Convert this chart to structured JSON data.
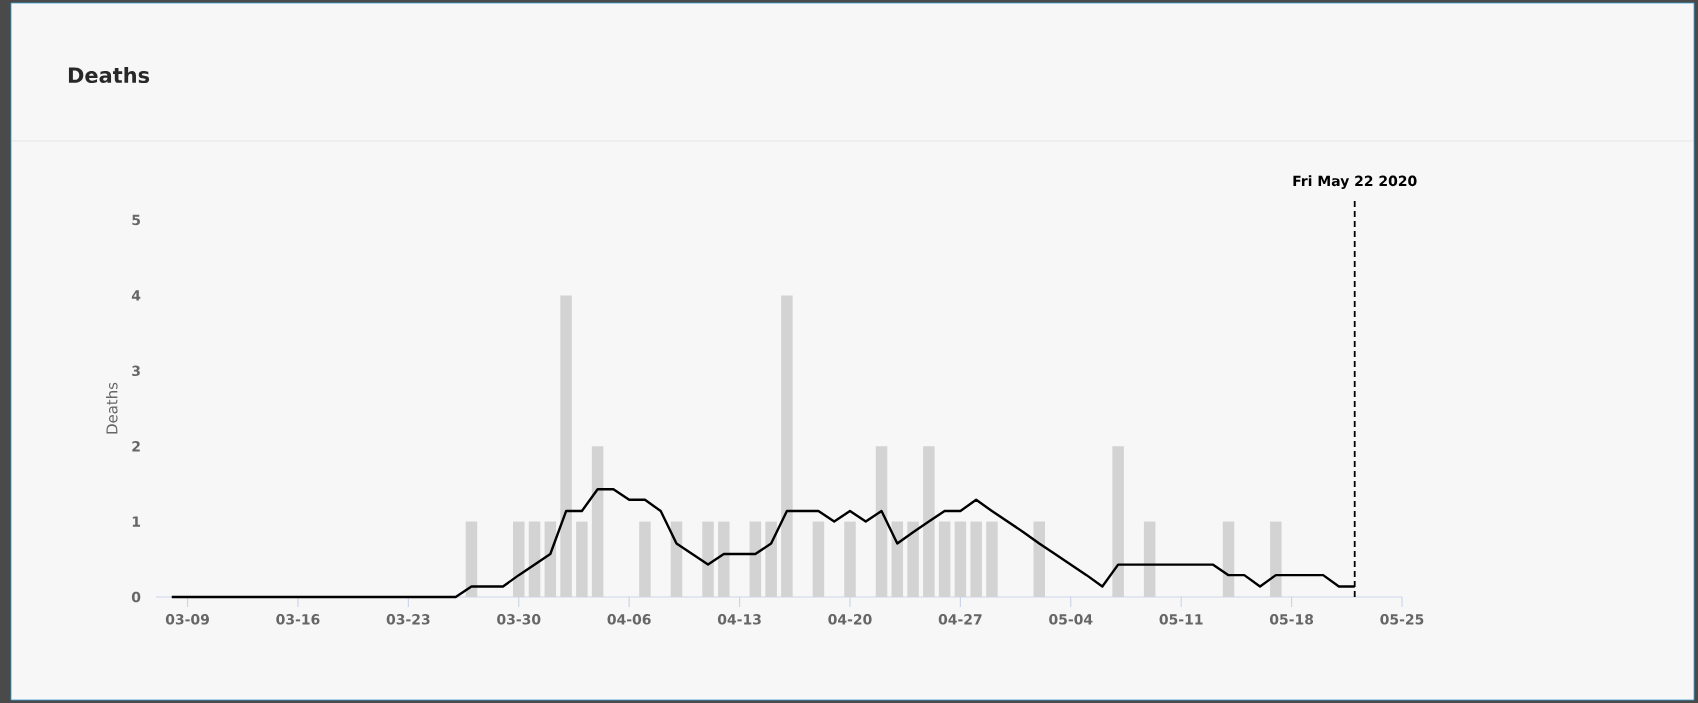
{
  "chart_data": {
    "type": "bar",
    "title": "Deaths",
    "ylabel": "Deaths",
    "x": [
      "2020-03-08",
      "2020-03-09",
      "2020-03-10",
      "2020-03-11",
      "2020-03-12",
      "2020-03-13",
      "2020-03-14",
      "2020-03-15",
      "2020-03-16",
      "2020-03-17",
      "2020-03-18",
      "2020-03-19",
      "2020-03-20",
      "2020-03-21",
      "2020-03-22",
      "2020-03-23",
      "2020-03-24",
      "2020-03-25",
      "2020-03-26",
      "2020-03-27",
      "2020-03-28",
      "2020-03-29",
      "2020-03-30",
      "2020-03-31",
      "2020-04-01",
      "2020-04-02",
      "2020-04-03",
      "2020-04-04",
      "2020-04-05",
      "2020-04-06",
      "2020-04-07",
      "2020-04-08",
      "2020-04-09",
      "2020-04-10",
      "2020-04-11",
      "2020-04-12",
      "2020-04-13",
      "2020-04-14",
      "2020-04-15",
      "2020-04-16",
      "2020-04-17",
      "2020-04-18",
      "2020-04-19",
      "2020-04-20",
      "2020-04-21",
      "2020-04-22",
      "2020-04-23",
      "2020-04-24",
      "2020-04-25",
      "2020-04-26",
      "2020-04-27",
      "2020-04-28",
      "2020-04-29",
      "2020-04-30",
      "2020-05-01",
      "2020-05-02",
      "2020-05-03",
      "2020-05-04",
      "2020-05-05",
      "2020-05-06",
      "2020-05-07",
      "2020-05-08",
      "2020-05-09",
      "2020-05-10",
      "2020-05-11",
      "2020-05-12",
      "2020-05-13",
      "2020-05-14",
      "2020-05-15",
      "2020-05-16",
      "2020-05-17",
      "2020-05-18",
      "2020-05-19",
      "2020-05-20",
      "2020-05-21",
      "2020-05-22"
    ],
    "series": [
      {
        "color": "#d3d3d3",
        "values": [
          0,
          0,
          0,
          0,
          0,
          0,
          0,
          0,
          0,
          0,
          0,
          0,
          0,
          0,
          0,
          0,
          0,
          0,
          0,
          1,
          0,
          0,
          1,
          1,
          1,
          4,
          1,
          2,
          0,
          0,
          1,
          0,
          1,
          0,
          1,
          1,
          0,
          1,
          1,
          4,
          0,
          1,
          0,
          1,
          0,
          2,
          1,
          1,
          2,
          1,
          1,
          1,
          1,
          0,
          0,
          1,
          0,
          0,
          0,
          0,
          2,
          0,
          1,
          0,
          0,
          0,
          0,
          1,
          0,
          0,
          1,
          0,
          0,
          0,
          0,
          0
        ]
      },
      {
        "type": "line",
        "color": "#000000",
        "values": [
          0,
          0,
          0,
          0,
          0,
          0,
          0,
          0,
          0,
          0,
          0,
          0,
          0,
          0,
          0,
          0,
          0,
          0,
          0,
          0.14,
          0.14,
          0.14,
          0.29,
          0.43,
          0.57,
          1.14,
          1.14,
          1.43,
          1.43,
          1.29,
          1.29,
          1.14,
          0.71,
          0.57,
          0.43,
          0.57,
          0.57,
          0.57,
          0.71,
          1.14,
          1.14,
          1.14,
          1.0,
          1.14,
          1.0,
          1.14,
          0.71,
          0.86,
          1.0,
          1.14,
          1.14,
          1.29,
          1.14,
          1.0,
          0.86,
          0.71,
          0.57,
          0.43,
          0.29,
          0.14,
          0.43,
          0.43,
          0.43,
          0.43,
          0.43,
          0.43,
          0.43,
          0.29,
          0.29,
          0.14,
          0.29,
          0.29,
          0.29,
          0.29,
          0.14,
          0.14
        ]
      }
    ],
    "xlim": [
      "2020-03-07",
      "2020-05-25"
    ],
    "xticks": [
      {
        "value": "2020-03-09",
        "label": "03-09"
      },
      {
        "value": "2020-03-16",
        "label": "03-16"
      },
      {
        "value": "2020-03-23",
        "label": "03-23"
      },
      {
        "value": "2020-03-30",
        "label": "03-30"
      },
      {
        "value": "2020-04-06",
        "label": "04-06"
      },
      {
        "value": "2020-04-13",
        "label": "04-13"
      },
      {
        "value": "2020-04-20",
        "label": "04-20"
      },
      {
        "value": "2020-04-27",
        "label": "04-27"
      },
      {
        "value": "2020-05-04",
        "label": "05-04"
      },
      {
        "value": "2020-05-11",
        "label": "05-11"
      },
      {
        "value": "2020-05-18",
        "label": "05-18"
      },
      {
        "value": "2020-05-25",
        "label": "05-25"
      }
    ],
    "ylim": [
      0,
      5
    ],
    "yticks": [
      0,
      1,
      2,
      3,
      4,
      5
    ],
    "ref_lines": [
      {
        "axis": "x",
        "value": "2020-05-22",
        "label": "Fri May 22 2020",
        "color": "#000000",
        "line_style": "dashed"
      }
    ]
  }
}
